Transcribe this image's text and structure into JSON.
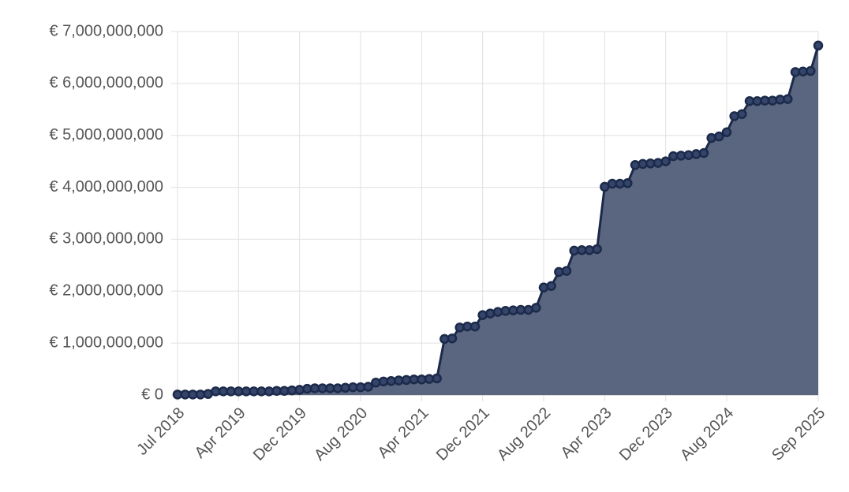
{
  "chart_data": {
    "type": "line",
    "categories": [
      "Jul 2018",
      null,
      null,
      null,
      null,
      null,
      null,
      null,
      "Apr 2019",
      null,
      null,
      null,
      null,
      null,
      null,
      null,
      "Dec 2019",
      null,
      null,
      null,
      null,
      null,
      null,
      null,
      "Aug 2020",
      null,
      null,
      null,
      null,
      null,
      null,
      null,
      "Apr 2021",
      null,
      null,
      null,
      null,
      null,
      null,
      null,
      "Dec 2021",
      null,
      null,
      null,
      null,
      null,
      null,
      null,
      "Aug 2022",
      null,
      null,
      null,
      null,
      null,
      null,
      null,
      "Apr 2023",
      null,
      null,
      null,
      null,
      null,
      null,
      null,
      "Dec 2023",
      null,
      null,
      null,
      null,
      null,
      null,
      null,
      "Aug 2024",
      null,
      null,
      null,
      null,
      null,
      null,
      null,
      null,
      null,
      null,
      null,
      "Sep 2025"
    ],
    "values": [
      10000000.0,
      10000000.0,
      10000000.0,
      10000000.0,
      20000000.0,
      70000000.0,
      70000000.0,
      70000000.0,
      70000000.0,
      70000000.0,
      70000000.0,
      70000000.0,
      70000000.0,
      80000000.0,
      80000000.0,
      90000000.0,
      100000000.0,
      120000000.0,
      130000000.0,
      130000000.0,
      130000000.0,
      130000000.0,
      140000000.0,
      150000000.0,
      150000000.0,
      160000000.0,
      240000000.0,
      260000000.0,
      270000000.0,
      280000000.0,
      290000000.0,
      300000000.0,
      300000000.0,
      310000000.0,
      320000000.0,
      1080000000.0,
      1090000000.0,
      1300000000.0,
      1320000000.0,
      1320000000.0,
      1540000000.0,
      1570000000.0,
      1600000000.0,
      1620000000.0,
      1630000000.0,
      1640000000.0,
      1640000000.0,
      1680000000.0,
      2070000000.0,
      2100000000.0,
      2370000000.0,
      2390000000.0,
      2780000000.0,
      2790000000.0,
      2790000000.0,
      2810000000.0,
      4010000000.0,
      4070000000.0,
      4070000000.0,
      4080000000.0,
      4430000000.0,
      4450000000.0,
      4460000000.0,
      4470000000.0,
      4500000000.0,
      4600000000.0,
      4610000000.0,
      4620000000.0,
      4640000000.0,
      4660000000.0,
      4950000000.0,
      4980000000.0,
      5060000000.0,
      5370000000.0,
      5410000000.0,
      5660000000.0,
      5660000000.0,
      5670000000.0,
      5670000000.0,
      5690000000.0,
      5700000000.0,
      6220000000.0,
      6230000000.0,
      6240000000.0,
      6730000000.0
    ],
    "color": "#1c2a4a",
    "fill": "#5a6680",
    "ylim": [
      0,
      7000000000.0
    ],
    "yticks": [
      {
        "value": 0,
        "label": "€ 0"
      },
      {
        "value": 1000000000.0,
        "label": "€ 1,000,000,000"
      },
      {
        "value": 2000000000.0,
        "label": "€ 2,000,000,000"
      },
      {
        "value": 3000000000.0,
        "label": "€ 3,000,000,000"
      },
      {
        "value": 4000000000.0,
        "label": "€ 4,000,000,000"
      },
      {
        "value": 5000000000.0,
        "label": "€ 5,000,000,000"
      },
      {
        "value": 6000000000.0,
        "label": "€ 6,000,000,000"
      },
      {
        "value": 7000000000.0,
        "label": "€ 7,000,000,000"
      }
    ],
    "grid": true
  }
}
